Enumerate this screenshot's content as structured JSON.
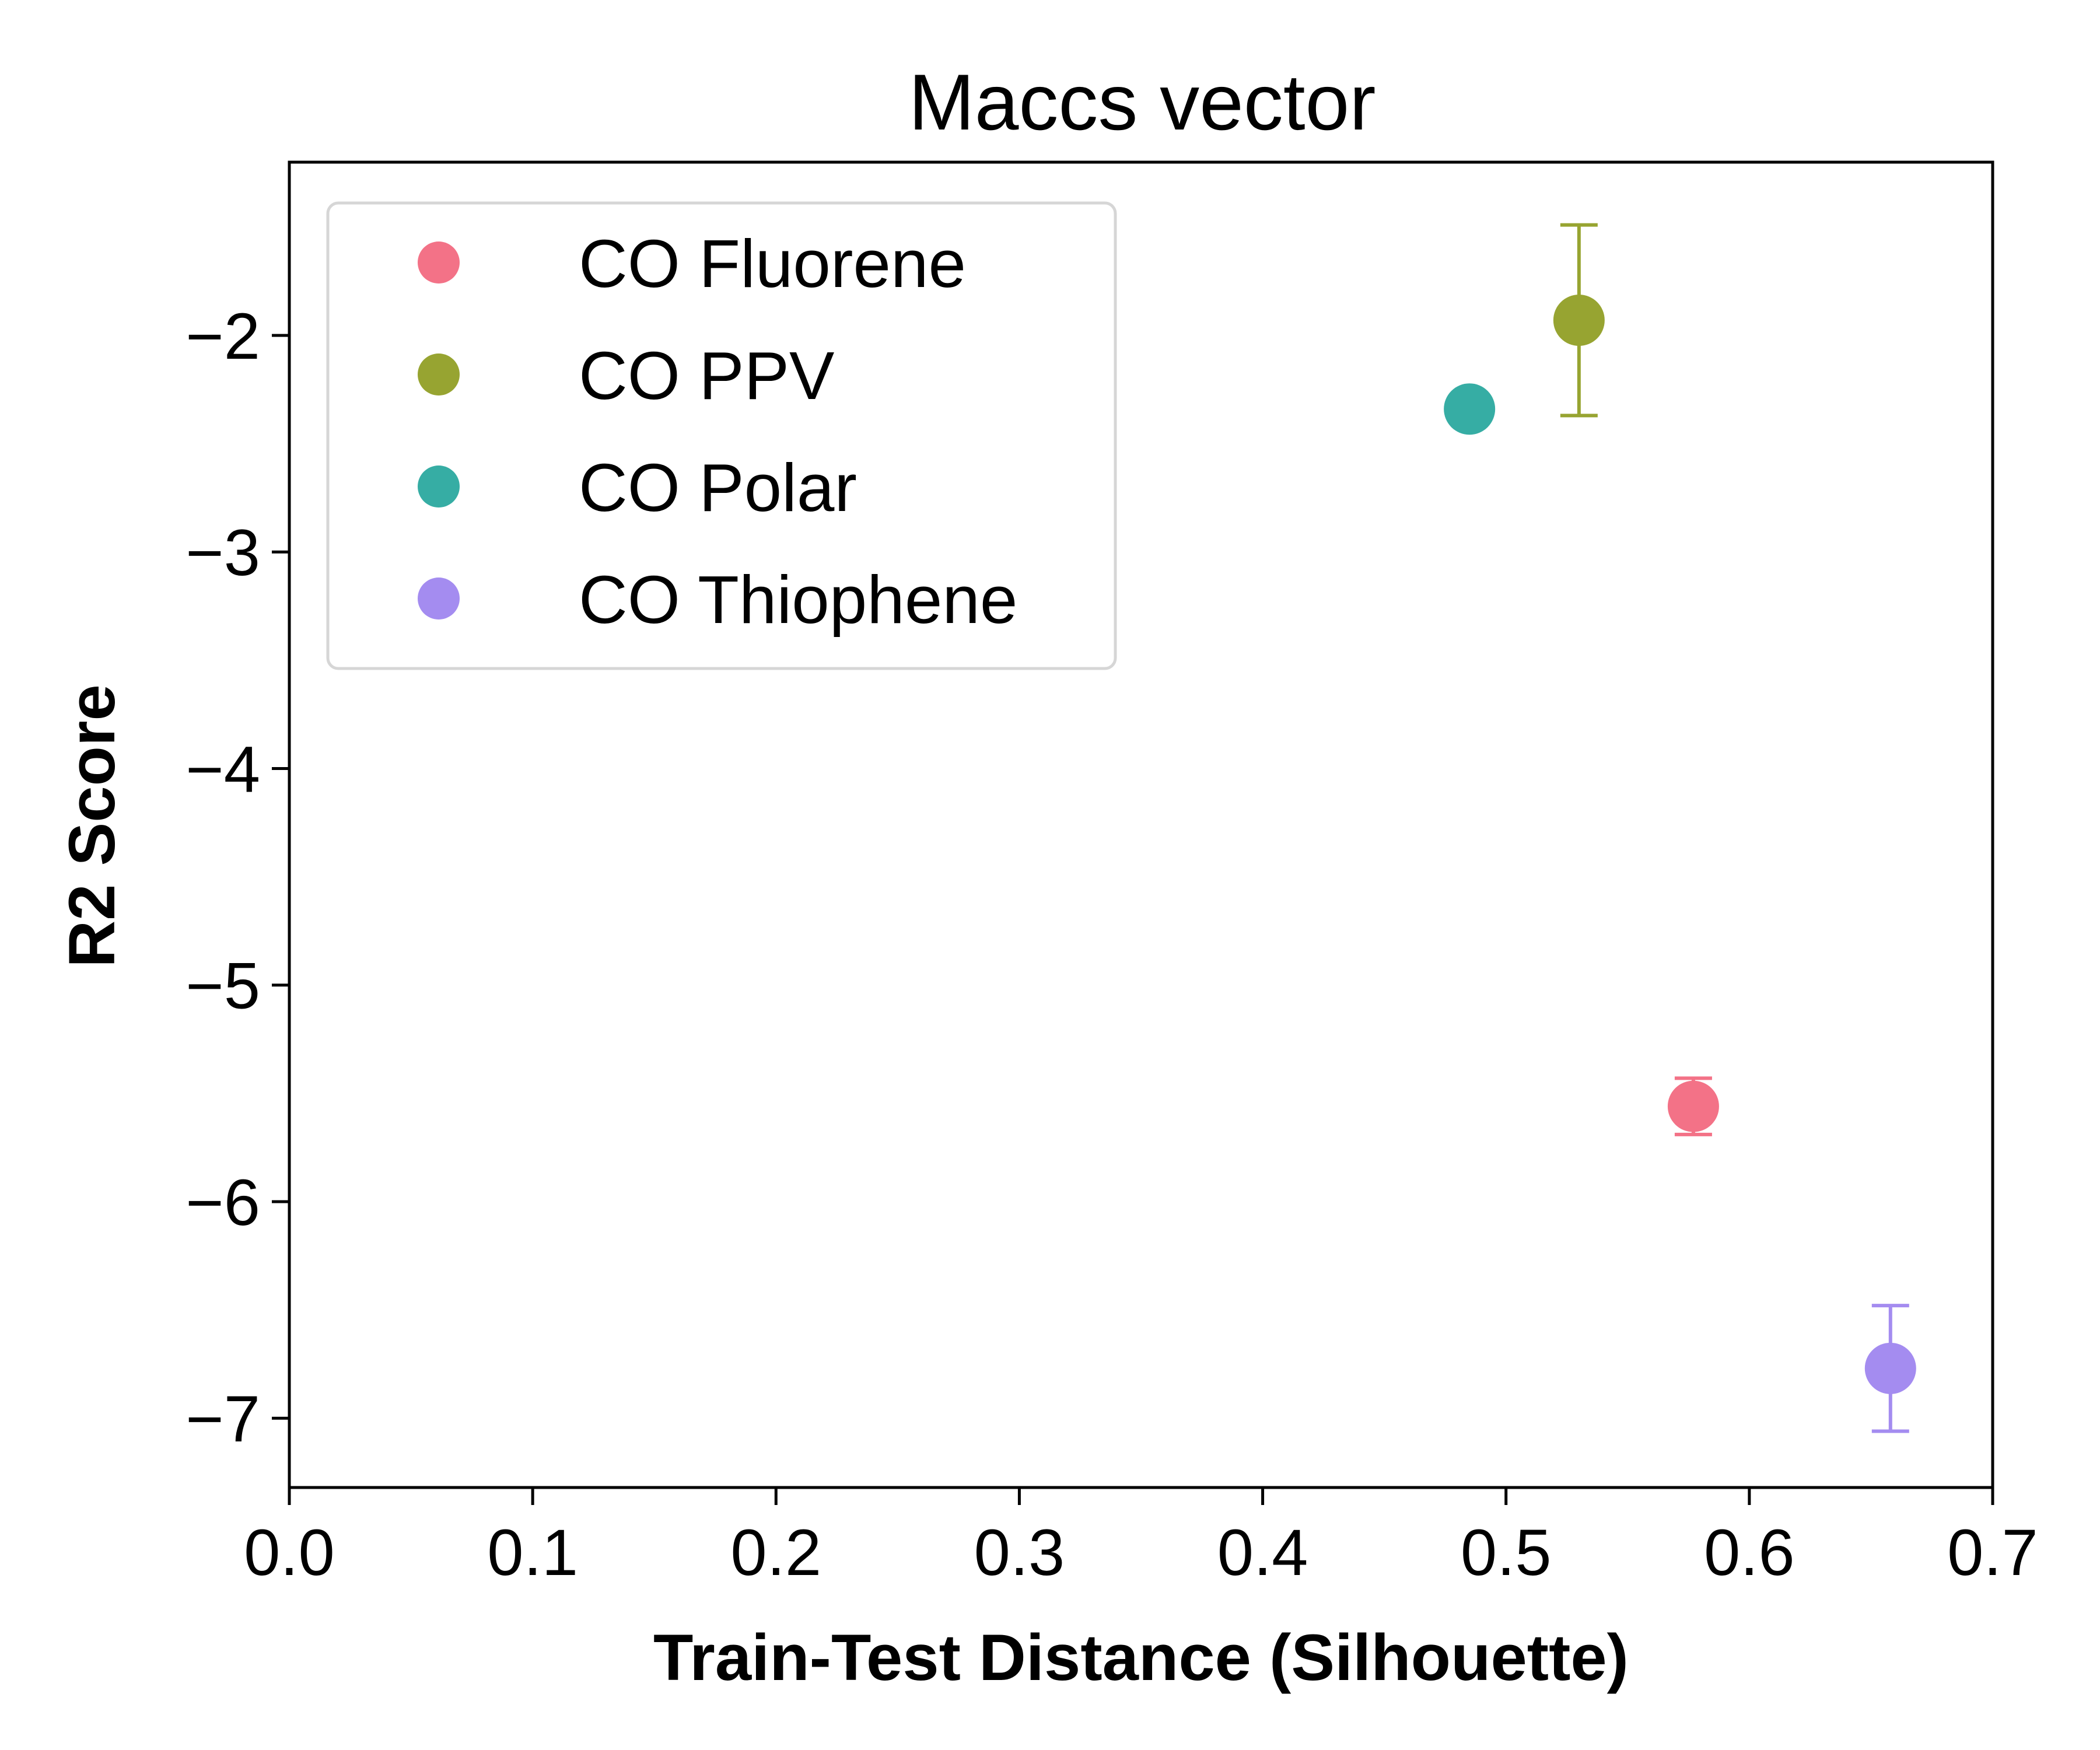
{
  "chart_data": {
    "type": "scatter",
    "title": "Maccs vector",
    "xlabel": "Train-Test Distance (Silhouette)",
    "ylabel": "R2 Score",
    "xlim": [
      0.0,
      0.7
    ],
    "ylim": [
      -7.32,
      -1.2
    ],
    "xticks": [
      0.0,
      0.1,
      0.2,
      0.3,
      0.4,
      0.5,
      0.6,
      0.7
    ],
    "xtick_labels": [
      "0.0",
      "0.1",
      "0.2",
      "0.3",
      "0.4",
      "0.5",
      "0.6",
      "0.7"
    ],
    "yticks": [
      -2,
      -3,
      -4,
      -5,
      -6,
      -7
    ],
    "ytick_labels": [
      "−2",
      "−3",
      "−4",
      "−5",
      "−6",
      "−7"
    ],
    "grid": false,
    "legend_position": "top-left",
    "series": [
      {
        "name": "CO Fluorene",
        "color": "#f37287",
        "x": 0.577,
        "y": -5.56,
        "yerr": 0.13
      },
      {
        "name": "CO PPV",
        "color": "#97a431",
        "x": 0.53,
        "y": -1.93,
        "yerr": 0.44
      },
      {
        "name": "CO Polar",
        "color": "#36ada4",
        "x": 0.485,
        "y": -2.34,
        "yerr": 0
      },
      {
        "name": "CO Thiophene",
        "color": "#a48cf0",
        "x": 0.658,
        "y": -6.77,
        "yerr": 0.29
      }
    ]
  }
}
